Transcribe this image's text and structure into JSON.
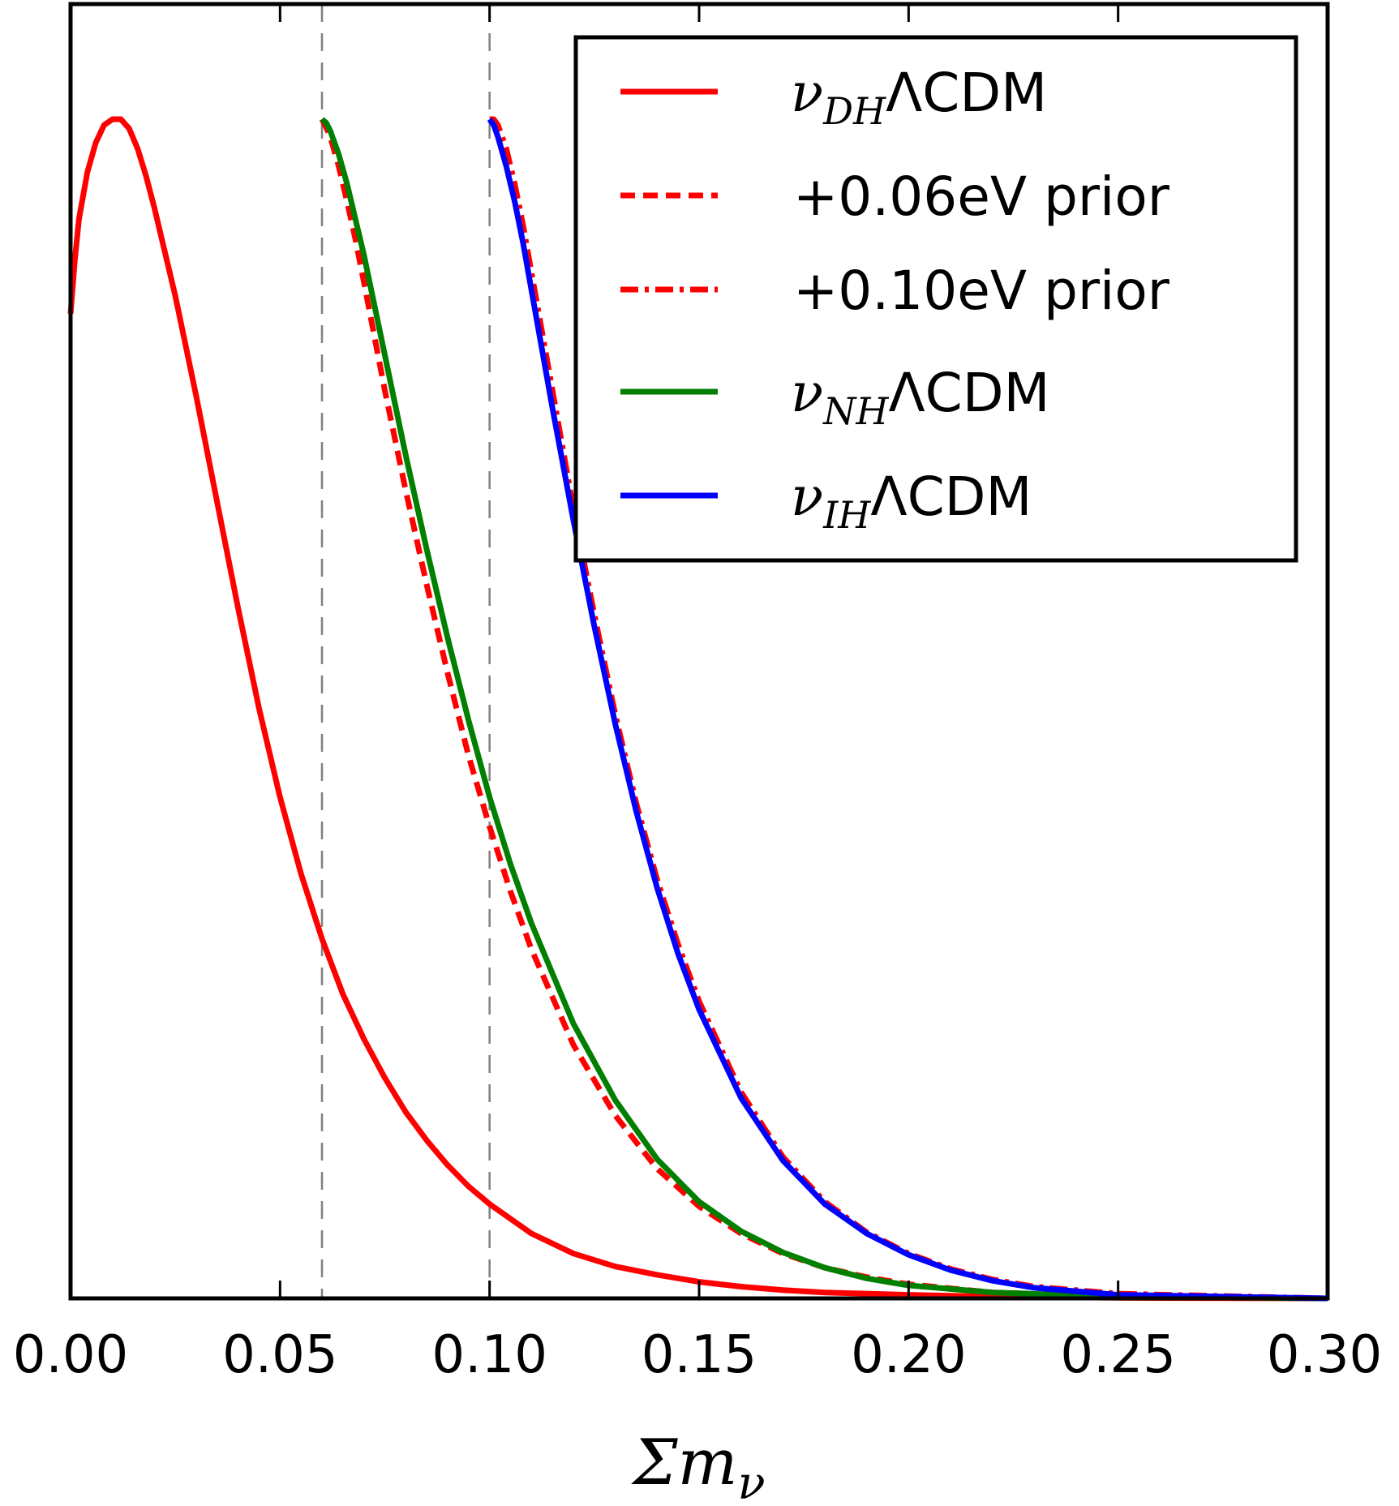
{
  "chart_data": {
    "type": "line",
    "title": "",
    "xlabel": "Σm_ν",
    "xlabel_parts": {
      "main": "Σm",
      "sub": "ν"
    },
    "ylabel": "",
    "xlim": [
      0.0,
      0.3
    ],
    "ylim": [
      0.0,
      1.0
    ],
    "x_ticks": [
      "0.00",
      "0.05",
      "0.10",
      "0.15",
      "0.20",
      "0.25",
      "0.30"
    ],
    "x_tick_values": [
      0.0,
      0.05,
      0.1,
      0.15,
      0.2,
      0.25,
      0.3
    ],
    "y_ticks": [],
    "grid": false,
    "legend_position": "top-right",
    "vlines": [
      {
        "x": 0.06,
        "color": "#808080",
        "style": "dashed"
      },
      {
        "x": 0.1,
        "color": "#808080",
        "style": "dashed"
      }
    ],
    "series": [
      {
        "name": "ν_DH ΛCDM",
        "label_main": "ν",
        "label_sub": "DH",
        "label_rest": "ΛCDM",
        "color": "#ff0000",
        "style": "solid",
        "x": [
          0.0,
          0.001,
          0.002,
          0.004,
          0.006,
          0.008,
          0.01,
          0.012,
          0.014,
          0.016,
          0.018,
          0.02,
          0.025,
          0.03,
          0.035,
          0.04,
          0.045,
          0.05,
          0.055,
          0.06,
          0.065,
          0.07,
          0.075,
          0.08,
          0.085,
          0.09,
          0.095,
          0.1,
          0.11,
          0.12,
          0.13,
          0.14,
          0.15,
          0.16,
          0.17,
          0.18,
          0.2,
          0.22,
          0.25,
          0.3
        ],
        "y": [
          0.835,
          0.88,
          0.915,
          0.955,
          0.98,
          0.995,
          1.0,
          1.0,
          0.992,
          0.975,
          0.952,
          0.925,
          0.85,
          0.765,
          0.675,
          0.585,
          0.5,
          0.425,
          0.36,
          0.305,
          0.258,
          0.22,
          0.187,
          0.158,
          0.134,
          0.113,
          0.095,
          0.08,
          0.055,
          0.038,
          0.027,
          0.02,
          0.014,
          0.01,
          0.007,
          0.005,
          0.003,
          0.0015,
          0.0005,
          0.0
        ]
      },
      {
        "name": "+0.06eV prior",
        "label_main": "+0.06eV prior",
        "label_sub": "",
        "label_rest": "",
        "color": "#ff0000",
        "style": "dashed",
        "x": [
          0.06,
          0.061,
          0.062,
          0.064,
          0.066,
          0.068,
          0.07,
          0.075,
          0.08,
          0.085,
          0.09,
          0.095,
          0.1,
          0.105,
          0.11,
          0.12,
          0.13,
          0.14,
          0.15,
          0.16,
          0.17,
          0.18,
          0.19,
          0.2,
          0.22,
          0.25,
          0.3
        ],
        "y": [
          1.0,
          0.993,
          0.985,
          0.96,
          0.93,
          0.898,
          0.862,
          0.77,
          0.685,
          0.605,
          0.53,
          0.46,
          0.4,
          0.345,
          0.296,
          0.215,
          0.155,
          0.11,
          0.078,
          0.055,
          0.038,
          0.026,
          0.018,
          0.012,
          0.005,
          0.0015,
          0.0
        ]
      },
      {
        "name": "+0.10eV prior",
        "label_main": "+0.10eV prior",
        "label_sub": "",
        "label_rest": "",
        "color": "#ff0000",
        "style": "dashdot",
        "x": [
          0.1,
          0.101,
          0.102,
          0.104,
          0.106,
          0.108,
          0.11,
          0.115,
          0.12,
          0.125,
          0.13,
          0.135,
          0.14,
          0.145,
          0.15,
          0.16,
          0.17,
          0.18,
          0.19,
          0.2,
          0.21,
          0.22,
          0.23,
          0.25,
          0.3
        ],
        "y": [
          1.0,
          1.0,
          0.995,
          0.975,
          0.945,
          0.91,
          0.87,
          0.77,
          0.67,
          0.58,
          0.495,
          0.42,
          0.355,
          0.3,
          0.252,
          0.175,
          0.12,
          0.082,
          0.056,
          0.038,
          0.025,
          0.016,
          0.01,
          0.004,
          0.0
        ]
      },
      {
        "name": "ν_NH ΛCDM",
        "label_main": "ν",
        "label_sub": "NH",
        "label_rest": "ΛCDM",
        "color": "#007f00",
        "style": "solid",
        "x": [
          0.06,
          0.061,
          0.062,
          0.064,
          0.066,
          0.068,
          0.07,
          0.075,
          0.08,
          0.085,
          0.09,
          0.095,
          0.1,
          0.105,
          0.11,
          0.12,
          0.13,
          0.14,
          0.15,
          0.16,
          0.17,
          0.18,
          0.19,
          0.2,
          0.22,
          0.25,
          0.3
        ],
        "y": [
          1.0,
          0.997,
          0.99,
          0.97,
          0.945,
          0.915,
          0.885,
          0.8,
          0.715,
          0.635,
          0.56,
          0.49,
          0.425,
          0.368,
          0.318,
          0.233,
          0.168,
          0.118,
          0.082,
          0.057,
          0.039,
          0.026,
          0.017,
          0.011,
          0.005,
          0.0015,
          0.0
        ]
      },
      {
        "name": "ν_IH ΛCDM",
        "label_main": "ν",
        "label_sub": "IH",
        "label_rest": "ΛCDM",
        "color": "#0000ff",
        "style": "solid",
        "x": [
          0.1,
          0.101,
          0.102,
          0.104,
          0.106,
          0.108,
          0.11,
          0.115,
          0.12,
          0.125,
          0.13,
          0.135,
          0.14,
          0.145,
          0.15,
          0.16,
          0.17,
          0.18,
          0.19,
          0.2,
          0.21,
          0.22,
          0.23,
          0.25,
          0.3
        ],
        "y": [
          1.0,
          0.995,
          0.985,
          0.96,
          0.93,
          0.895,
          0.855,
          0.755,
          0.66,
          0.57,
          0.487,
          0.413,
          0.348,
          0.292,
          0.245,
          0.17,
          0.117,
          0.08,
          0.055,
          0.037,
          0.024,
          0.015,
          0.009,
          0.003,
          0.0
        ]
      }
    ]
  }
}
